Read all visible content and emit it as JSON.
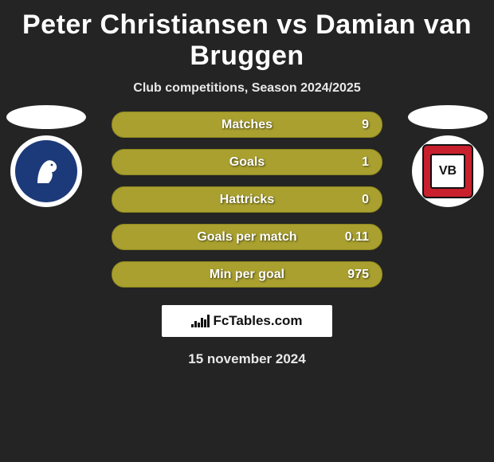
{
  "title": "Peter Christiansen vs Damian van Bruggen",
  "subtitle": "Club competitions, Season 2024/2025",
  "date": "15 november 2024",
  "brand": "FcTables.com",
  "colors": {
    "page_bg": "#242424",
    "bar_bg": "#a9a02f",
    "bar_border": "#8e871f",
    "text": "#ffffff"
  },
  "left_club": {
    "name": "Randers FC",
    "bg": "#1c3a7a"
  },
  "right_club": {
    "name": "VB",
    "bg": "#c8202c",
    "text": "VB"
  },
  "stats": [
    {
      "label": "Matches",
      "value": "9"
    },
    {
      "label": "Goals",
      "value": "1"
    },
    {
      "label": "Hattricks",
      "value": "0"
    },
    {
      "label": "Goals per match",
      "value": "0.11"
    },
    {
      "label": "Min per goal",
      "value": "975"
    }
  ],
  "chart_icon_bars": [
    4,
    8,
    6,
    12,
    10,
    16
  ]
}
